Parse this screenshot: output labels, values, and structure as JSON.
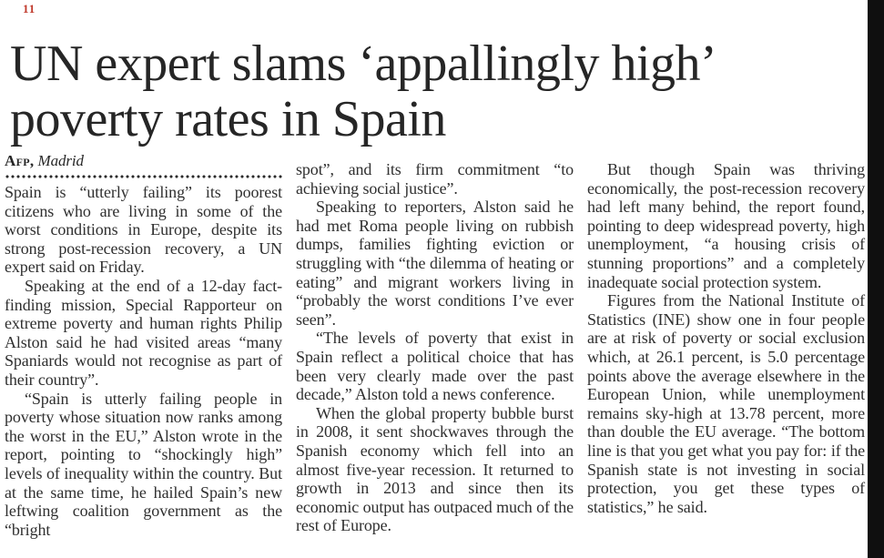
{
  "page_mark": "11",
  "headline": {
    "line1": "UN expert slams ‘appallingly high’",
    "line2": "poverty rates in Spain"
  },
  "byline": {
    "source": "Afp,",
    "location": "Madrid"
  },
  "colors": {
    "accent_red": "#c0392b",
    "ink": "#2f2f2f",
    "edge_bar": "#0f0f0f"
  },
  "columns": [
    {
      "paragraphs": [
        {
          "text": "Spain is “utterly failing” its poorest citizens who are living in some of the worst conditions in Europe, despite its strong post-recession recovery, a UN expert said on Friday."
        },
        {
          "text": "Speaking at the end of a 12-day fact-finding mission, Special Rapporteur on extreme poverty and human rights Philip Alston said he had visited areas “many Spaniards would not recognise as part of their country”."
        },
        {
          "text": "“Spain is utterly failing people in poverty whose situation now ranks among the worst in the EU,” Alston wrote in the report, pointing to “shockingly high” levels of inequality within the country. But at the same time, he hailed Spain’s new leftwing coalition government as the “bright"
        }
      ]
    },
    {
      "paragraphs": [
        {
          "text": "spot”, and its firm commitment “to achieving social justice”."
        },
        {
          "text": "Speaking to reporters, Alston said he had met Roma people living on rubbish dumps, families fighting eviction or struggling with “the dilemma of heating or eating” and migrant workers living in “probably the worst conditions I’ve ever seen”."
        },
        {
          "text": "“The levels of poverty that exist in Spain reflect a political choice that has been very clearly made over the past decade,” Alston told a news conference."
        },
        {
          "text": "When the global property bubble burst in 2008, it sent shockwaves through the Spanish economy which fell into an almost five-year recession. It returned to growth in 2013 and since then its economic output has outpaced much of the rest of Europe."
        }
      ]
    },
    {
      "paragraphs": [
        {
          "text": "But though Spain was thriving economically, the post-recession recovery had left many behind, the report found, pointing to deep widespread poverty, high unemployment, “a housing crisis of stunning proportions” and a completely inadequate social protection system."
        },
        {
          "text": "Figures from the National Institute of Statistics (INE) show one in four people are at risk of poverty or social exclusion which, at 26.1 percent, is 5.0 percentage points above the average elsewhere in the European Union, while unemployment remains sky-high at 13.78 percent, more than double the EU average. “The bottom line is that you get what you pay for: if the Spanish state is not investing in social protection, you get these types of statistics,” he said."
        }
      ]
    }
  ]
}
